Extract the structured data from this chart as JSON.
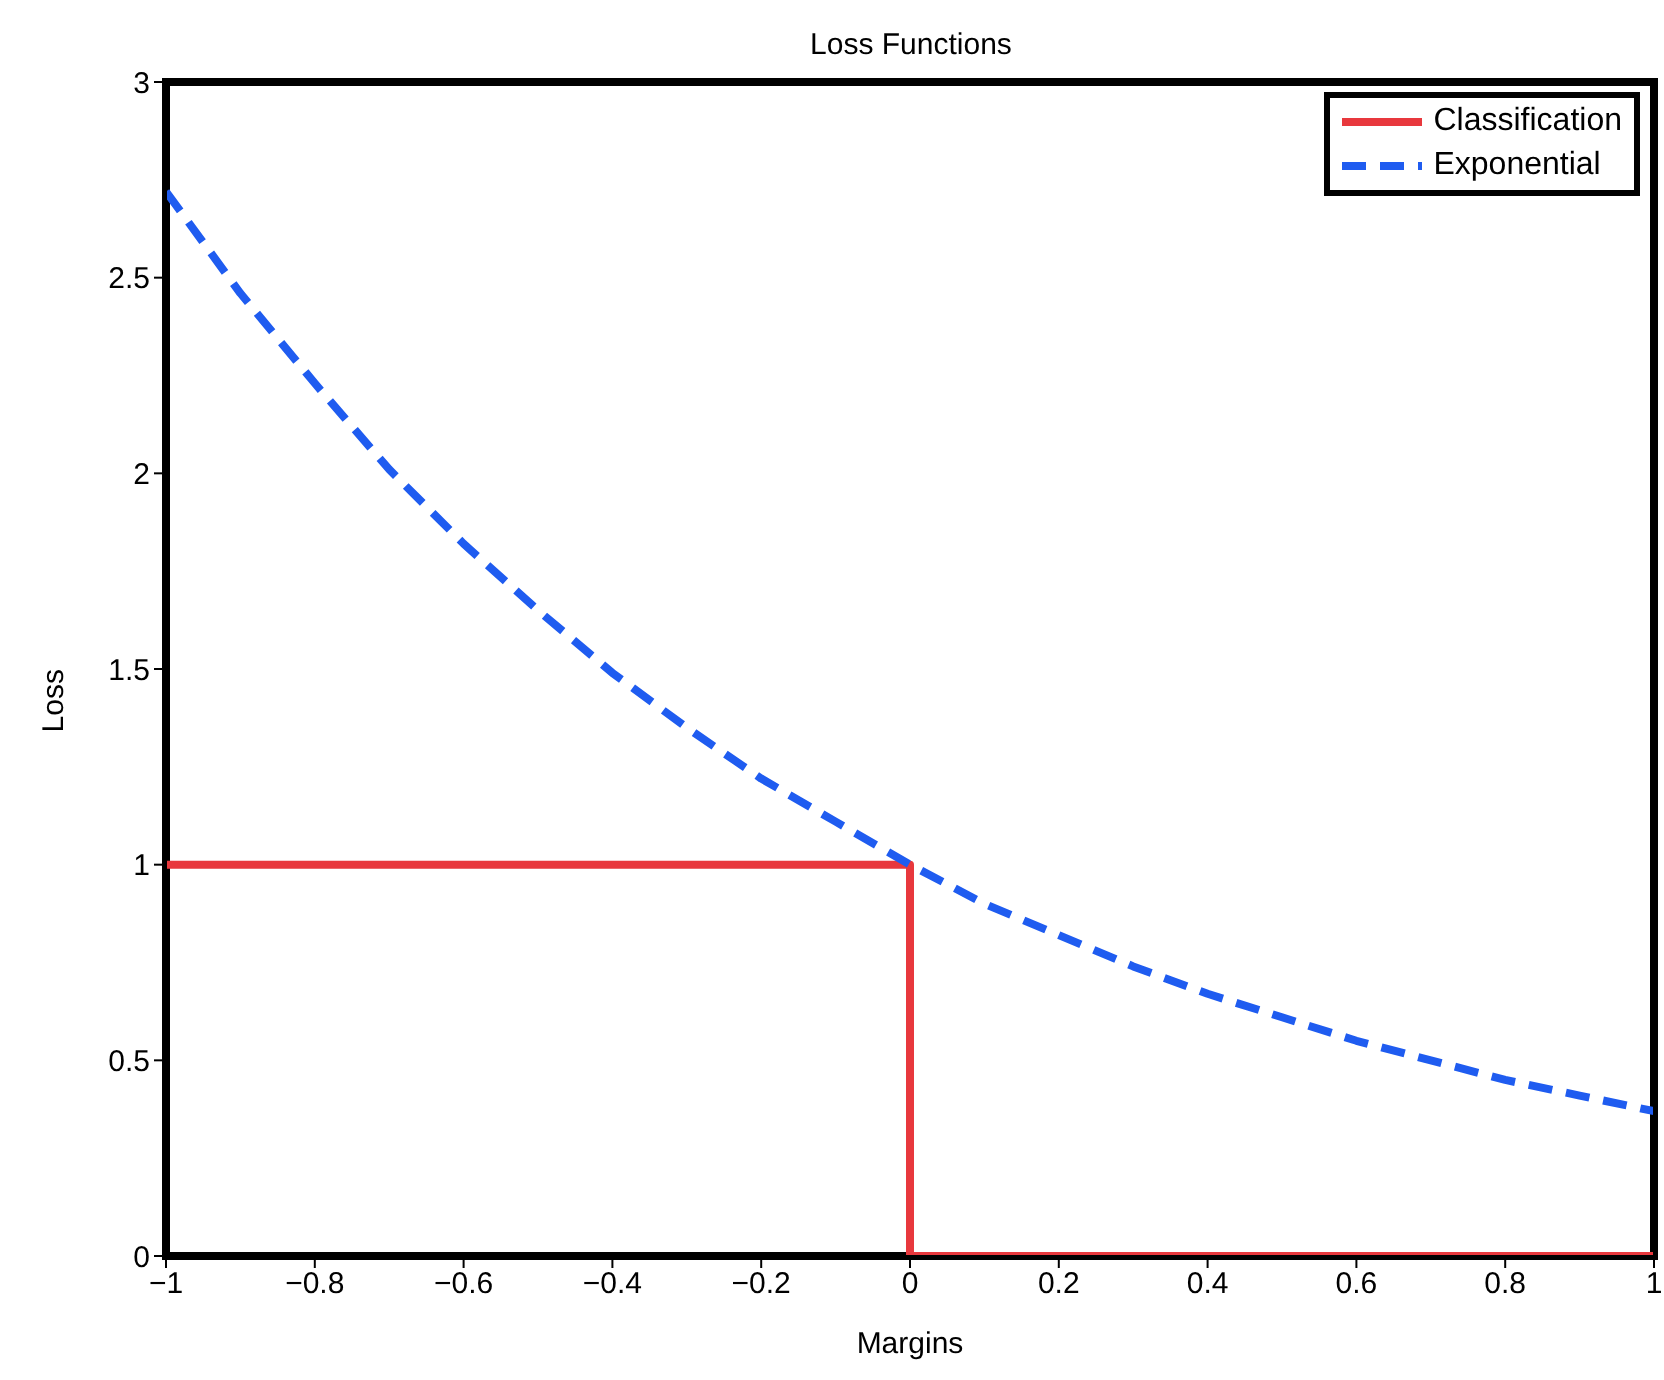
{
  "chart_data": {
    "type": "line",
    "title": "Loss Functions",
    "xlabel": "Margins",
    "ylabel": "Loss",
    "xlim": [
      -1,
      1
    ],
    "xticks": [
      {
        "value": -1,
        "label": "−1"
      },
      {
        "value": -0.8,
        "label": "−0.8"
      },
      {
        "value": -0.6,
        "label": "−0.6"
      },
      {
        "value": -0.4,
        "label": "−0.4"
      },
      {
        "value": -0.2,
        "label": "−0.2"
      },
      0,
      0.2,
      0.4,
      0.6,
      0.8,
      1
    ],
    "ylim": [
      0,
      3
    ],
    "yticks": [
      0,
      0.5,
      1,
      1.5,
      2,
      2.5,
      3
    ],
    "grid": false,
    "legend": "top right",
    "marker": "none",
    "series": [
      {
        "name": "Classification",
        "color": "#e8383d",
        "line_style": "solid",
        "x": [
          -1,
          0,
          0,
          1
        ],
        "values": [
          1,
          1,
          0,
          0
        ]
      },
      {
        "name": "Exponential",
        "color": "#1f5cf0",
        "line_style": "dashed",
        "x": [
          -1,
          -0.9,
          -0.8,
          -0.7,
          -0.6,
          -0.5,
          -0.4,
          -0.3,
          -0.2,
          -0.1,
          0,
          0.1,
          0.2,
          0.3,
          0.4,
          0.5,
          0.6,
          0.7,
          0.8,
          0.9,
          1
        ],
        "values": [
          2.72,
          2.46,
          2.23,
          2.01,
          1.82,
          1.65,
          1.49,
          1.35,
          1.22,
          1.11,
          1.0,
          0.9,
          0.82,
          0.74,
          0.67,
          0.61,
          0.55,
          0.5,
          0.45,
          0.41,
          0.37
        ]
      }
    ]
  }
}
